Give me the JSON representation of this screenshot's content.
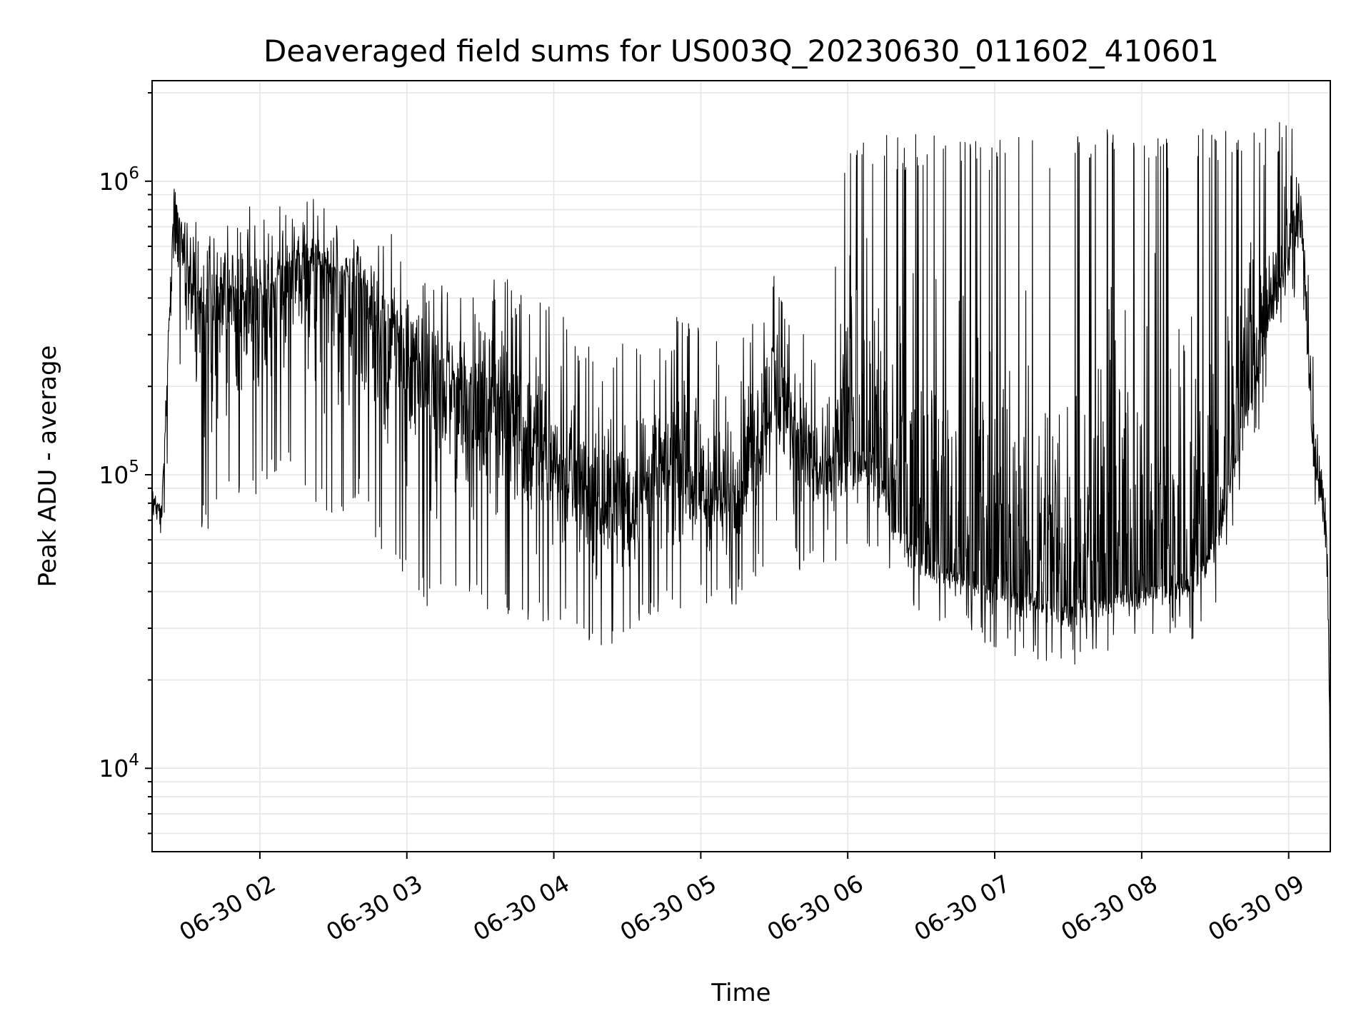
{
  "chart_data": {
    "type": "line",
    "title": "Deaveraged field sums for US003Q_20230630_011602_410601",
    "xlabel": "Time",
    "ylabel": "Peak ADU - average",
    "yscale": "log",
    "ylim": [
      5200,
      2200000
    ],
    "xlim": [
      "2023-06-30 01:16",
      "2023-06-30 09:17"
    ],
    "grid": true,
    "line_color": "#000000",
    "x_ticks": [
      {
        "value": "2023-06-30 02:00",
        "label": "06-30 02"
      },
      {
        "value": "2023-06-30 03:00",
        "label": "06-30 03"
      },
      {
        "value": "2023-06-30 04:00",
        "label": "06-30 04"
      },
      {
        "value": "2023-06-30 05:00",
        "label": "06-30 05"
      },
      {
        "value": "2023-06-30 06:00",
        "label": "06-30 06"
      },
      {
        "value": "2023-06-30 07:00",
        "label": "06-30 07"
      },
      {
        "value": "2023-06-30 08:00",
        "label": "06-30 08"
      },
      {
        "value": "2023-06-30 09:00",
        "label": "06-30 09"
      }
    ],
    "y_ticks": [
      {
        "value": 10000,
        "mantissa": "10",
        "exponent": "4"
      },
      {
        "value": 100000,
        "mantissa": "10",
        "exponent": "5"
      },
      {
        "value": 1000000,
        "mantissa": "10",
        "exponent": "6"
      }
    ],
    "series": [
      {
        "x": [
          "2023-06-30 01:16",
          "2023-06-30 01:20",
          "2023-06-30 01:25",
          "2023-06-30 01:30",
          "2023-06-30 01:35",
          "2023-06-30 01:40",
          "2023-06-30 01:45",
          "2023-06-30 01:50",
          "2023-06-30 02:00",
          "2023-06-30 02:10",
          "2023-06-30 02:20",
          "2023-06-30 02:30",
          "2023-06-30 02:40",
          "2023-06-30 02:50",
          "2023-06-30 03:00",
          "2023-06-30 03:10",
          "2023-06-30 03:20",
          "2023-06-30 03:30",
          "2023-06-30 03:40",
          "2023-06-30 03:50",
          "2023-06-30 04:00",
          "2023-06-30 04:10",
          "2023-06-30 04:20",
          "2023-06-30 04:30",
          "2023-06-30 04:40",
          "2023-06-30 04:50",
          "2023-06-30 05:00",
          "2023-06-30 05:10",
          "2023-06-30 05:20",
          "2023-06-30 05:30",
          "2023-06-30 05:40",
          "2023-06-30 05:50",
          "2023-06-30 06:00",
          "2023-06-30 06:10",
          "2023-06-30 06:20",
          "2023-06-30 06:30",
          "2023-06-30 06:40",
          "2023-06-30 06:50",
          "2023-06-30 07:00",
          "2023-06-30 07:10",
          "2023-06-30 07:20",
          "2023-06-30 07:30",
          "2023-06-30 07:40",
          "2023-06-30 07:50",
          "2023-06-30 08:00",
          "2023-06-30 08:10",
          "2023-06-30 08:20",
          "2023-06-30 08:30",
          "2023-06-30 08:40",
          "2023-06-30 08:50",
          "2023-06-30 09:00",
          "2023-06-30 09:05",
          "2023-06-30 09:10",
          "2023-06-30 09:14",
          "2023-06-30 09:16",
          "2023-06-30 09:17"
        ],
        "center": [
          80000,
          75000,
          900000,
          500000,
          400000,
          350000,
          420000,
          380000,
          400000,
          500000,
          520000,
          450000,
          480000,
          320000,
          250000,
          180000,
          200000,
          190000,
          170000,
          140000,
          110000,
          90000,
          75000,
          80000,
          95000,
          105000,
          90000,
          80000,
          110000,
          200000,
          130000,
          95000,
          120000,
          120000,
          70000,
          55000,
          48000,
          45000,
          42000,
          40000,
          38000,
          36000,
          38000,
          40000,
          42000,
          42000,
          45000,
          60000,
          140000,
          300000,
          600000,
          800000,
          120000,
          80000,
          50000,
          7000
        ],
        "low": [
          62000,
          58000,
          330000,
          230000,
          80000,
          70000,
          100000,
          90000,
          100000,
          120000,
          100000,
          80000,
          100000,
          60000,
          50000,
          40000,
          45000,
          40000,
          38000,
          35000,
          35000,
          32000,
          30000,
          32000,
          38000,
          40000,
          42000,
          40000,
          45000,
          70000,
          55000,
          55000,
          60000,
          60000,
          45000,
          38000,
          35000,
          32000,
          30000,
          28000,
          27000,
          25000,
          27000,
          28000,
          30000,
          31000,
          32000,
          38000,
          90000,
          200000,
          400000,
          560000,
          90000,
          70000,
          30000,
          6800
        ],
        "high": [
          95000,
          90000,
          1100000,
          850000,
          800000,
          780000,
          820000,
          780000,
          850000,
          900000,
          880000,
          820000,
          800000,
          700000,
          650000,
          480000,
          520000,
          480000,
          470000,
          420000,
          380000,
          300000,
          260000,
          290000,
          320000,
          350000,
          320000,
          300000,
          360000,
          500000,
          350000,
          200000,
          1500000,
          1500000,
          1450000,
          1450000,
          1450000,
          1400000,
          1400000,
          1450000,
          1450000,
          1450000,
          1500000,
          1500000,
          1450000,
          1450000,
          1500000,
          1550000,
          1500000,
          1500000,
          1700000,
          1100000,
          300000,
          110000,
          60000,
          10000
        ]
      }
    ]
  }
}
